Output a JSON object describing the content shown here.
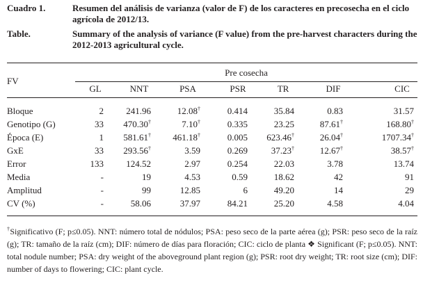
{
  "caption": {
    "es_label": "Cuadro 1.",
    "es_text": "Resumen del  análisis de varianza (valor de F) de los caracteres en precosecha en el ciclo agrícola de 2012/13.",
    "en_label": "Table.",
    "en_text": "Summary of the analysis of variance (F value) from the pre-harvest characters during the 2012-2013 agricultural cycle."
  },
  "table": {
    "row_header": "FV",
    "group_header": "Pre cosecha",
    "columns": [
      "GL",
      "NNT",
      "PSA",
      "PSR",
      "TR",
      "DIF",
      "CIC"
    ],
    "rows": [
      {
        "label": "Bloque",
        "cells": [
          {
            "v": "2",
            "s": ""
          },
          {
            "v": "241.96",
            "s": ""
          },
          {
            "v": "12.08",
            "s": "†"
          },
          {
            "v": "0.414",
            "s": ""
          },
          {
            "v": "35.84",
            "s": ""
          },
          {
            "v": "0.83",
            "s": ""
          },
          {
            "v": "31.57",
            "s": ""
          }
        ]
      },
      {
        "label": "Genotipo (G)",
        "cells": [
          {
            "v": "33",
            "s": ""
          },
          {
            "v": "470.30",
            "s": "†"
          },
          {
            "v": "7.10",
            "s": "†"
          },
          {
            "v": "0.335",
            "s": ""
          },
          {
            "v": "23.25",
            "s": ""
          },
          {
            "v": "87.61",
            "s": "†"
          },
          {
            "v": "168.80",
            "s": "†"
          }
        ]
      },
      {
        "label": "Época (E)",
        "cells": [
          {
            "v": "1",
            "s": ""
          },
          {
            "v": "581.61",
            "s": "†"
          },
          {
            "v": "461.18",
            "s": "†"
          },
          {
            "v": "0.005",
            "s": ""
          },
          {
            "v": "623.46",
            "s": "†"
          },
          {
            "v": "26.04",
            "s": "†"
          },
          {
            "v": "1707.34",
            "s": "†"
          }
        ]
      },
      {
        "label": "GxE",
        "cells": [
          {
            "v": "33",
            "s": ""
          },
          {
            "v": "293.56",
            "s": "†"
          },
          {
            "v": "3.59",
            "s": ""
          },
          {
            "v": "0.269",
            "s": ""
          },
          {
            "v": "37.23",
            "s": "†"
          },
          {
            "v": "12.67",
            "s": "†"
          },
          {
            "v": "38.57",
            "s": "†"
          }
        ]
      },
      {
        "label": "Error",
        "cells": [
          {
            "v": "133",
            "s": ""
          },
          {
            "v": "124.52",
            "s": ""
          },
          {
            "v": "2.97",
            "s": ""
          },
          {
            "v": "0.254",
            "s": ""
          },
          {
            "v": "22.03",
            "s": ""
          },
          {
            "v": "3.78",
            "s": ""
          },
          {
            "v": "13.74",
            "s": ""
          }
        ]
      },
      {
        "label": "Media",
        "cells": [
          {
            "v": "-",
            "s": ""
          },
          {
            "v": "19",
            "s": ""
          },
          {
            "v": "4.53",
            "s": ""
          },
          {
            "v": "0.59",
            "s": ""
          },
          {
            "v": "18.62",
            "s": ""
          },
          {
            "v": "42",
            "s": ""
          },
          {
            "v": "91",
            "s": ""
          }
        ]
      },
      {
        "label": "Amplitud",
        "cells": [
          {
            "v": "-",
            "s": ""
          },
          {
            "v": "99",
            "s": ""
          },
          {
            "v": "12.85",
            "s": ""
          },
          {
            "v": "6",
            "s": ""
          },
          {
            "v": "49.20",
            "s": ""
          },
          {
            "v": "14",
            "s": ""
          },
          {
            "v": "29",
            "s": ""
          }
        ]
      },
      {
        "label": "CV (%)",
        "cells": [
          {
            "v": "-",
            "s": ""
          },
          {
            "v": "58.06",
            "s": ""
          },
          {
            "v": "37.97",
            "s": ""
          },
          {
            "v": "84.21",
            "s": ""
          },
          {
            "v": "25.20",
            "s": ""
          },
          {
            "v": "4.58",
            "s": ""
          },
          {
            "v": "4.04",
            "s": ""
          }
        ]
      }
    ]
  },
  "footnote": {
    "dagger": "†",
    "text": "Significativo (F; p≤0.05). NNT: número total de nódulos;  PSA: peso seco de la parte aérea (g); PSR: peso seco de la raíz (g); TR: tamaño de la raíz (cm); DIF: número de días para floración; CIC: ciclo de planta ❖ Significant (F; p≤0.05). NNT: total nodule number; PSA: dry weight of the aboveground plant region (g); PSR: root dry weight; TR: root size (cm); DIF: number of days to flowering; CIC: plant cycle."
  }
}
